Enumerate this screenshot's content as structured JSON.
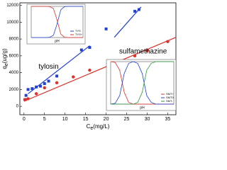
{
  "chart_data": [
    {
      "type": "scatter",
      "x_label": {
        "main": "C",
        "sub": "e",
        "unit": "(mg/L)"
      },
      "y_label": {
        "main": "q",
        "sub": "e",
        "unit": "(ug/g)"
      },
      "xlim": [
        -1,
        37
      ],
      "xticks": [
        0,
        5,
        10,
        15,
        20,
        25,
        30,
        35
      ],
      "ylim": [
        -1000,
        12300
      ],
      "yticks": [
        0,
        2000,
        4000,
        6000,
        8000,
        10000,
        12000
      ],
      "series": [
        {
          "name": "tylosin",
          "color": "#1f3fd6",
          "marker": "square",
          "x": [
            0.3,
            0.5,
            1,
            2,
            3,
            4,
            5,
            6,
            8,
            14,
            16,
            20,
            27,
            28
          ],
          "values": [
            800,
            1300,
            2000,
            2100,
            2300,
            2400,
            2700,
            3000,
            3600,
            6700,
            7000,
            9200,
            11300,
            11500
          ],
          "label_at": [
            6,
            4700
          ],
          "fit": {
            "x": [
              1,
              16,
              22,
              28.5
            ],
            "values": [
              1500,
              7200,
              8200,
              11800
            ]
          }
        },
        {
          "name": "sulfamethazine",
          "color": "#e0302a",
          "marker": "circle",
          "x": [
            0.2,
            1,
            3,
            5,
            8,
            12,
            16,
            22,
            27,
            30,
            35
          ],
          "values": [
            800,
            900,
            1500,
            2200,
            2800,
            3500,
            4300,
            5100,
            6000,
            6600,
            7700
          ],
          "label_at": [
            29,
            6500
          ],
          "fit": {
            "x": [
              0,
              37
            ],
            "values": [
              600,
              8200
            ]
          }
        }
      ]
    },
    {
      "type": "line",
      "x_label": "pH",
      "xlim": [
        0,
        14
      ],
      "ylim": [
        0,
        1
      ],
      "x": [
        0,
        1,
        2,
        3,
        4,
        5,
        6,
        7,
        8,
        9,
        10,
        11,
        12,
        13,
        14
      ],
      "series": [
        {
          "name": "TYS",
          "color": "#1f3fd6",
          "values": [
            0,
            0,
            0,
            0,
            0,
            0.01,
            0.07,
            0.44,
            0.89,
            0.99,
            1,
            1,
            1,
            1,
            1
          ]
        },
        {
          "name": "TYS+",
          "color": "#e0302a",
          "values": [
            1,
            1,
            1,
            1,
            1,
            0.99,
            0.93,
            0.56,
            0.11,
            0.01,
            0,
            0,
            0,
            0,
            0
          ]
        }
      ]
    },
    {
      "type": "line",
      "x_label": "pH",
      "xlim": [
        0,
        14
      ],
      "ylim": [
        0,
        1
      ],
      "x": [
        0,
        1,
        2,
        3,
        4,
        5,
        6,
        7,
        8,
        9,
        10,
        11,
        12,
        13,
        14
      ],
      "series": [
        {
          "name": "SMT+",
          "color": "#e0302a",
          "values": [
            1,
            0.98,
            0.8,
            0.28,
            0.04,
            0,
            0,
            0,
            0,
            0,
            0,
            0,
            0,
            0,
            0
          ]
        },
        {
          "name": "SMT0",
          "color": "#1f3fd6",
          "values": [
            0,
            0.02,
            0.2,
            0.72,
            0.96,
            1,
            0.96,
            0.72,
            0.2,
            0.04,
            0,
            0,
            0,
            0,
            0
          ]
        },
        {
          "name": "SMT-",
          "color": "#2a9a3a",
          "values": [
            0,
            0,
            0,
            0,
            0,
            0,
            0.04,
            0.28,
            0.8,
            0.96,
            1,
            1,
            1,
            1,
            1
          ]
        }
      ]
    }
  ]
}
